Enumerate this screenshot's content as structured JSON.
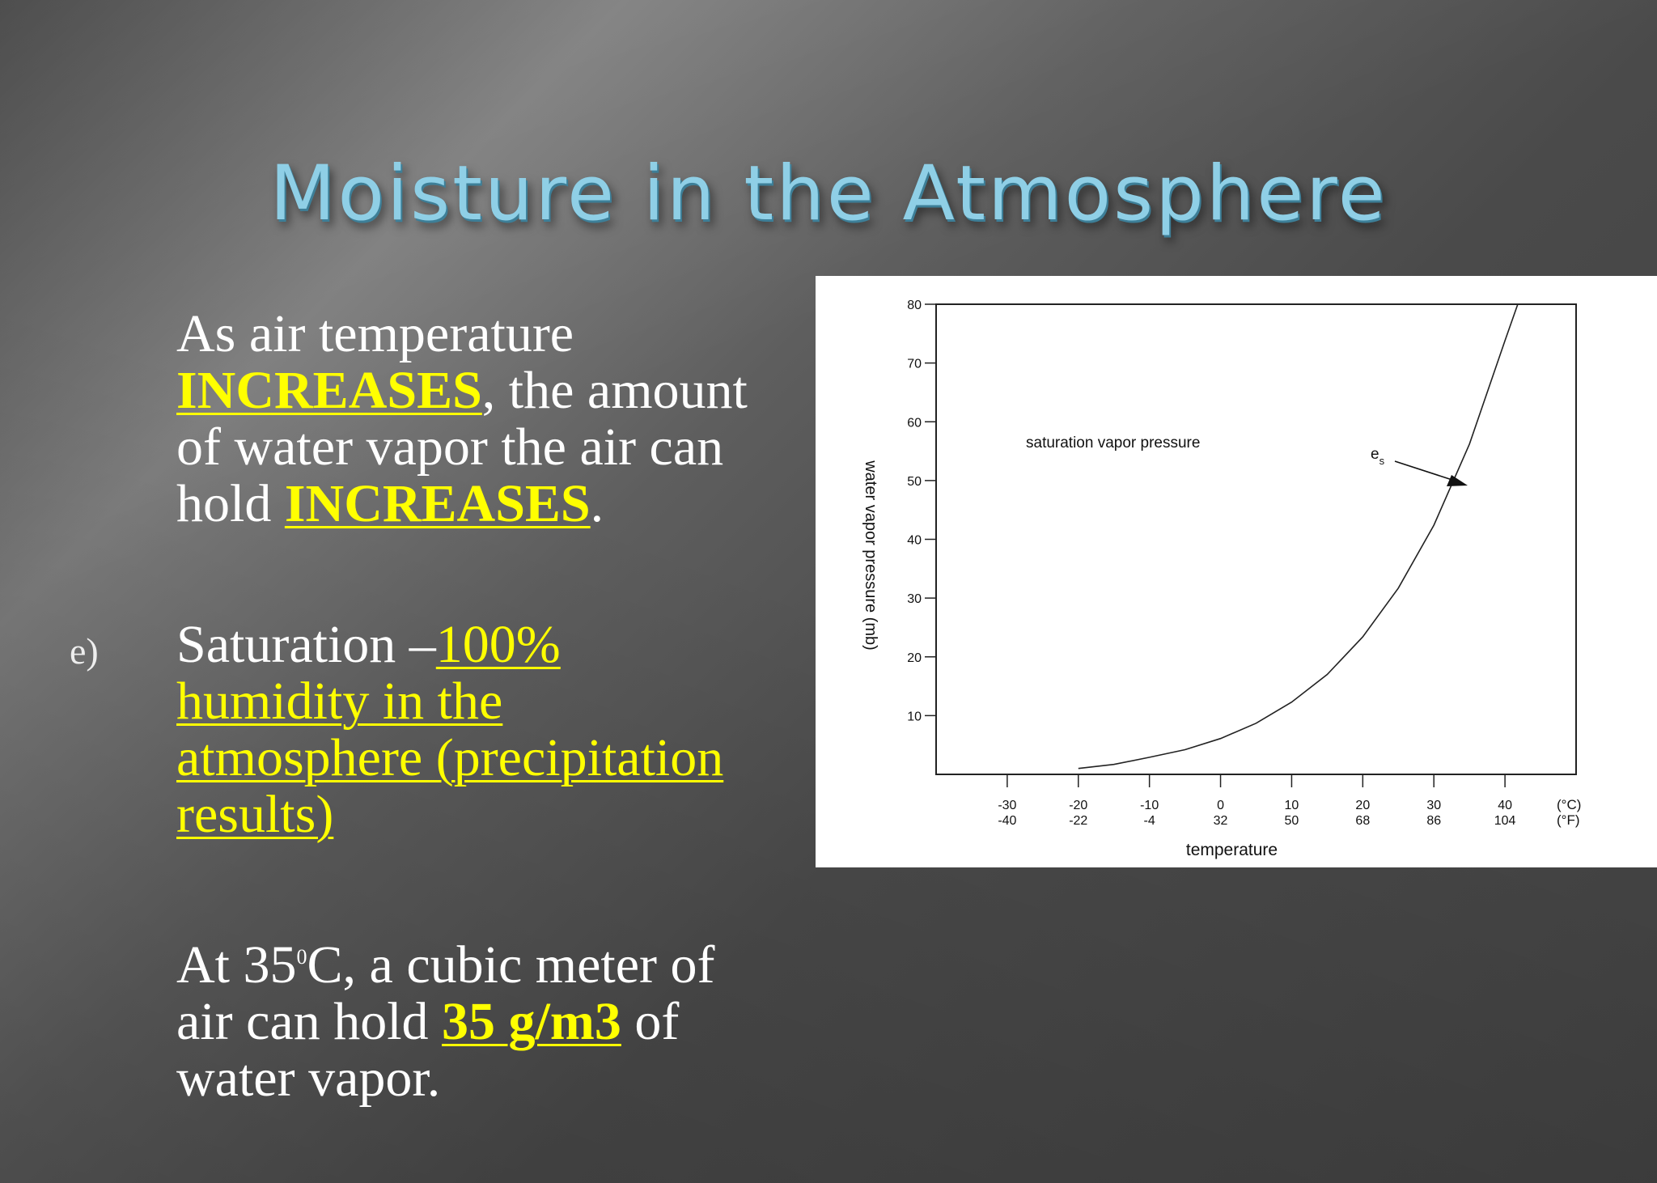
{
  "slide": {
    "title": "Moisture in the Atmosphere",
    "bullets": [
      {
        "marker": "",
        "segments": [
          {
            "text": "As air temperature",
            "style": "plain"
          },
          {
            "text": "INCREASES",
            "style": "highlight-bold"
          },
          {
            "text": ", the amount",
            "style": "plain"
          },
          {
            "text": "of water vapor the air can",
            "style": "plain"
          },
          {
            "text": "hold ",
            "style": "plain"
          },
          {
            "text": "INCREASES",
            "style": "highlight-bold"
          },
          {
            "text": ".",
            "style": "plain"
          }
        ]
      },
      {
        "marker": "e)",
        "segments": [
          {
            "text": "Saturation –",
            "style": "plain"
          },
          {
            "text": "100%",
            "style": "highlight"
          },
          {
            "text": "humidity in the",
            "style": "highlight"
          },
          {
            "text": "atmosphere (precipitation",
            "style": "highlight"
          },
          {
            "text": "results)",
            "style": "highlight"
          }
        ]
      },
      {
        "marker": "",
        "segments": [
          {
            "text": "At 35",
            "style": "plain"
          },
          {
            "text": "0",
            "style": "superscript"
          },
          {
            "text": "C, a cubic meter of",
            "style": "plain"
          },
          {
            "text": "air can hold ",
            "style": "plain"
          },
          {
            "text": "35 g/m3",
            "style": "highlight-bold"
          },
          {
            "text": " of",
            "style": "plain"
          },
          {
            "text": "water vapor.",
            "style": "plain"
          }
        ]
      }
    ],
    "colors": {
      "title": "#8fcfe6",
      "text": "#ffffff",
      "highlight": "#ffff00"
    }
  },
  "chart_data": {
    "type": "line",
    "title": "",
    "xlabel": "temperature",
    "ylabel": "water vapor pressure (mb)",
    "x_unit_c": "(°C)",
    "x_unit_f": "(°F)",
    "x_ticks_c": [
      "-30",
      "-20",
      "-10",
      "0",
      "10",
      "20",
      "30",
      "40"
    ],
    "x_ticks_f": [
      "-40",
      "-22",
      "-4",
      "32",
      "50",
      "68",
      "86",
      "104"
    ],
    "y_ticks": [
      "10",
      "20",
      "30",
      "40",
      "50",
      "60",
      "70",
      "80"
    ],
    "xlim": [
      -40,
      50
    ],
    "ylim": [
      0,
      80
    ],
    "curve_label": "saturation vapor pressure",
    "arrow_label": "es",
    "series": [
      {
        "x": [
          -20,
          -15,
          -10,
          -5,
          0,
          5,
          10,
          15,
          20,
          25,
          30,
          35,
          40
        ],
        "y": [
          1.0,
          1.7,
          2.9,
          4.2,
          6.1,
          8.7,
          12.3,
          17.0,
          23.4,
          31.7,
          42.4,
          56.2,
          73.8
        ]
      }
    ],
    "grid": false
  }
}
